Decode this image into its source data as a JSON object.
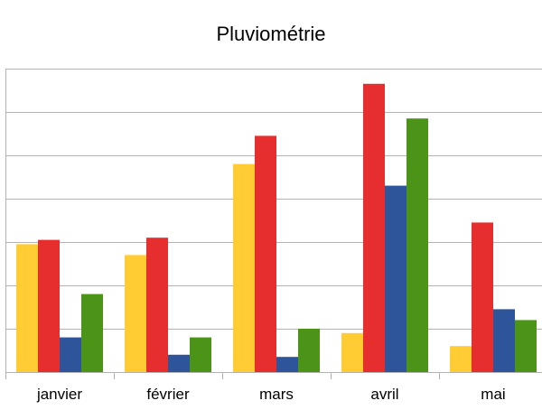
{
  "chart_data": {
    "type": "bar",
    "title": "Pluviométrie",
    "xlabel": "",
    "ylabel": "",
    "categories": [
      "janvier",
      "février",
      "mars",
      "avril",
      "mai"
    ],
    "series": [
      {
        "color": "#ffcc33",
        "values": [
          2.95,
          2.7,
          4.8,
          0.9,
          0.6
        ]
      },
      {
        "color": "#e62e2e",
        "values": [
          3.05,
          3.1,
          5.45,
          6.65,
          3.45
        ]
      },
      {
        "color": "#2e5599",
        "values": [
          0.8,
          0.4,
          0.35,
          4.3,
          1.45
        ]
      },
      {
        "color": "#4c9417",
        "values": [
          1.8,
          0.8,
          1.0,
          5.85,
          1.2
        ]
      }
    ],
    "ylim": [
      0,
      7
    ],
    "y_major_step": 1,
    "grid": true,
    "legend": "none"
  }
}
